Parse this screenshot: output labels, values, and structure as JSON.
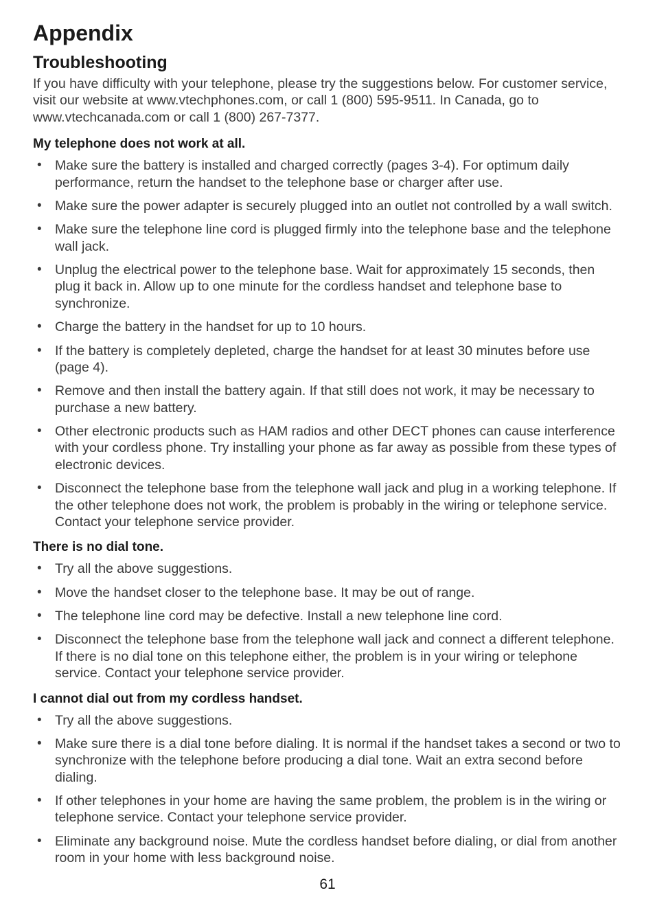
{
  "page": {
    "title": "Appendix",
    "subtitle": "Troubleshooting",
    "intro": "If you have difficulty with your telephone, please try the suggestions below. For customer service, visit our website at www.vtechphones.com, or call 1 (800) 595-9511. In Canada, go to www.vtechcanada.com or call 1 (800) 267-7377.",
    "page_number": "61"
  },
  "sections": [
    {
      "heading": "My telephone does not work at all.",
      "items": [
        "Make sure the battery is installed and charged correctly (pages 3-4). For optimum daily performance, return the handset to the telephone base or charger after use.",
        "Make sure the power adapter is securely plugged into an outlet not controlled by a wall switch.",
        "Make sure the telephone line cord is plugged firmly into the telephone base and the telephone wall jack.",
        "Unplug the electrical power to the telephone base. Wait for approximately 15 seconds, then plug it back in. Allow up to one minute for the cordless handset and telephone base to synchronize.",
        "Charge the battery in the handset for up to 10 hours.",
        "If the battery is completely depleted, charge the handset for at least 30 minutes before use (page 4).",
        "Remove and then install the battery again. If that still does not work, it may be necessary to purchase a new battery.",
        "Other electronic products such as HAM radios and other DECT phones can cause interference with your cordless phone. Try installing your phone as far away as possible from these types of electronic devices.",
        "Disconnect the telephone base from the telephone wall jack and plug in a working telephone. If the other telephone does not work, the problem is probably in the wiring or telephone service. Contact your telephone service provider."
      ]
    },
    {
      "heading": "There is no dial tone.",
      "items": [
        "Try all the above suggestions.",
        "Move the handset closer to the telephone base. It may be out of range.",
        "The telephone line cord may be defective. Install a new telephone line cord.",
        "Disconnect the telephone base from the telephone wall jack and connect a different telephone. If there is no dial tone on this telephone either, the problem is in your wiring or telephone service. Contact your telephone service provider."
      ]
    },
    {
      "heading": "I cannot dial out from my cordless handset.",
      "items": [
        "Try all the above suggestions.",
        "Make sure there is a dial tone before dialing. It is normal if the handset takes a second or two to synchronize with the telephone before producing a dial tone. Wait an extra second before dialing.",
        "If other telephones in your home are having the same problem, the problem is in the wiring or telephone service. Contact your telephone service provider.",
        "Eliminate any background noise. Mute the cordless handset before dialing, or dial from another room in your home with less background noise."
      ]
    }
  ]
}
